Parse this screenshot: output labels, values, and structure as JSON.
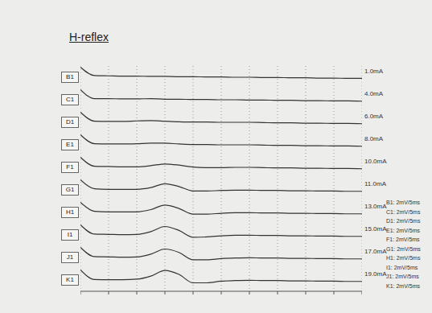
{
  "chart_data": {
    "type": "line",
    "title": "H-reflex",
    "x": [
      0,
      2.5,
      5,
      7.5,
      10,
      12.5,
      15,
      17.5,
      20,
      22.5,
      25,
      27.5,
      30,
      32.5,
      35,
      37.5,
      40,
      42.5,
      45,
      47.5,
      50
    ],
    "xlim": [
      0,
      50
    ],
    "xticks": [
      0,
      5,
      10,
      15,
      20,
      25,
      30,
      35,
      40,
      45,
      50
    ],
    "ylim": [
      -2,
      2
    ],
    "grid": true,
    "tick_labels": false,
    "color": "#333333",
    "series": [
      {
        "name": "B1",
        "label": "1.0mA",
        "values": [
          1.8,
          0.3,
          0.25,
          0.2,
          0.2,
          0.15,
          0.15,
          0.1,
          0.1,
          0.05,
          0.05,
          0,
          0,
          -0.05,
          -0.05,
          -0.1,
          -0.1,
          -0.15,
          -0.15,
          -0.2,
          -0.2
        ]
      },
      {
        "name": "C1",
        "label": "4.0mA",
        "values": [
          1.8,
          0.2,
          0.2,
          0.15,
          0.15,
          0.2,
          0.1,
          0.1,
          0.05,
          0.05,
          0,
          0,
          -0.05,
          -0.05,
          -0.1,
          -0.1,
          -0.15,
          -0.15,
          -0.2,
          -0.2,
          -0.25
        ]
      },
      {
        "name": "D1",
        "label": "6.0mA",
        "values": [
          1.8,
          0.2,
          0.15,
          0.15,
          0.25,
          0.3,
          0.2,
          0.1,
          0.05,
          0.05,
          0,
          0,
          0,
          -0.05,
          -0.1,
          -0.1,
          -0.15,
          -0.15,
          -0.2,
          -0.2,
          -0.25
        ]
      },
      {
        "name": "E1",
        "label": "8.0mA",
        "values": [
          1.8,
          0.2,
          0.15,
          0.15,
          0.2,
          0.3,
          0.3,
          0.15,
          0.05,
          0.05,
          0,
          0,
          0,
          -0.05,
          -0.1,
          -0.1,
          -0.15,
          -0.15,
          -0.2,
          -0.2,
          -0.25
        ]
      },
      {
        "name": "F1",
        "label": "10.0mA",
        "values": [
          1.8,
          0.2,
          0.15,
          0.1,
          0.1,
          0.3,
          0.6,
          0.4,
          0.05,
          -0.05,
          -0.05,
          0,
          0,
          -0.05,
          -0.1,
          -0.1,
          -0.15,
          -0.15,
          -0.2,
          -0.2,
          -0.25
        ]
      },
      {
        "name": "G1",
        "label": "11.0mA",
        "values": [
          1.8,
          0.2,
          0.1,
          0.1,
          0.1,
          0.4,
          1.1,
          0.6,
          -0.2,
          -0.2,
          -0.1,
          -0.05,
          -0.05,
          -0.1,
          -0.1,
          -0.15,
          -0.15,
          -0.2,
          -0.2,
          -0.25,
          -0.25
        ]
      },
      {
        "name": "H1",
        "label": "13.0mA",
        "values": [
          1.8,
          0.2,
          0.1,
          0.1,
          0.1,
          0.5,
          1.3,
          0.7,
          -0.3,
          -0.3,
          -0.15,
          -0.05,
          -0.05,
          -0.1,
          -0.1,
          -0.15,
          -0.15,
          -0.2,
          -0.2,
          -0.25,
          -0.25
        ]
      },
      {
        "name": "I1",
        "label": "15.0mA",
        "values": [
          1.8,
          0.15,
          0.1,
          0.05,
          0.1,
          0.6,
          1.5,
          0.8,
          -0.4,
          -0.35,
          -0.15,
          -0.05,
          -0.05,
          -0.1,
          -0.1,
          -0.15,
          -0.15,
          -0.2,
          -0.2,
          -0.25,
          -0.25
        ]
      },
      {
        "name": "J1",
        "label": "17.0mA",
        "values": [
          1.8,
          0.15,
          0.1,
          0.05,
          0.1,
          0.6,
          1.5,
          0.9,
          -0.4,
          -0.4,
          -0.2,
          -0.1,
          -0.05,
          -0.1,
          -0.1,
          -0.15,
          -0.15,
          -0.2,
          -0.2,
          -0.25,
          -0.25
        ]
      },
      {
        "name": "K1",
        "label": "19.0mA",
        "values": [
          1.8,
          0.1,
          0.05,
          0.05,
          0.15,
          0.7,
          1.7,
          1.0,
          -0.5,
          -0.5,
          -0.2,
          -0.1,
          -0.05,
          -0.1,
          -0.1,
          -0.15,
          -0.15,
          -0.2,
          -0.2,
          -0.25,
          -0.25
        ]
      }
    ],
    "annotations": [
      "B1: 2mV/5ms",
      "C1: 2mV/5ms",
      "D1: 2mV/5ms",
      "E1: 2mV/5ms",
      "F1: 2mV/5ms",
      "G1: 2mV/5ms",
      "H1: 2mV/5ms",
      "I1: 2mV/5ms",
      "J1: 2mV/5ms",
      "K1: 2mV/5ms"
    ]
  }
}
